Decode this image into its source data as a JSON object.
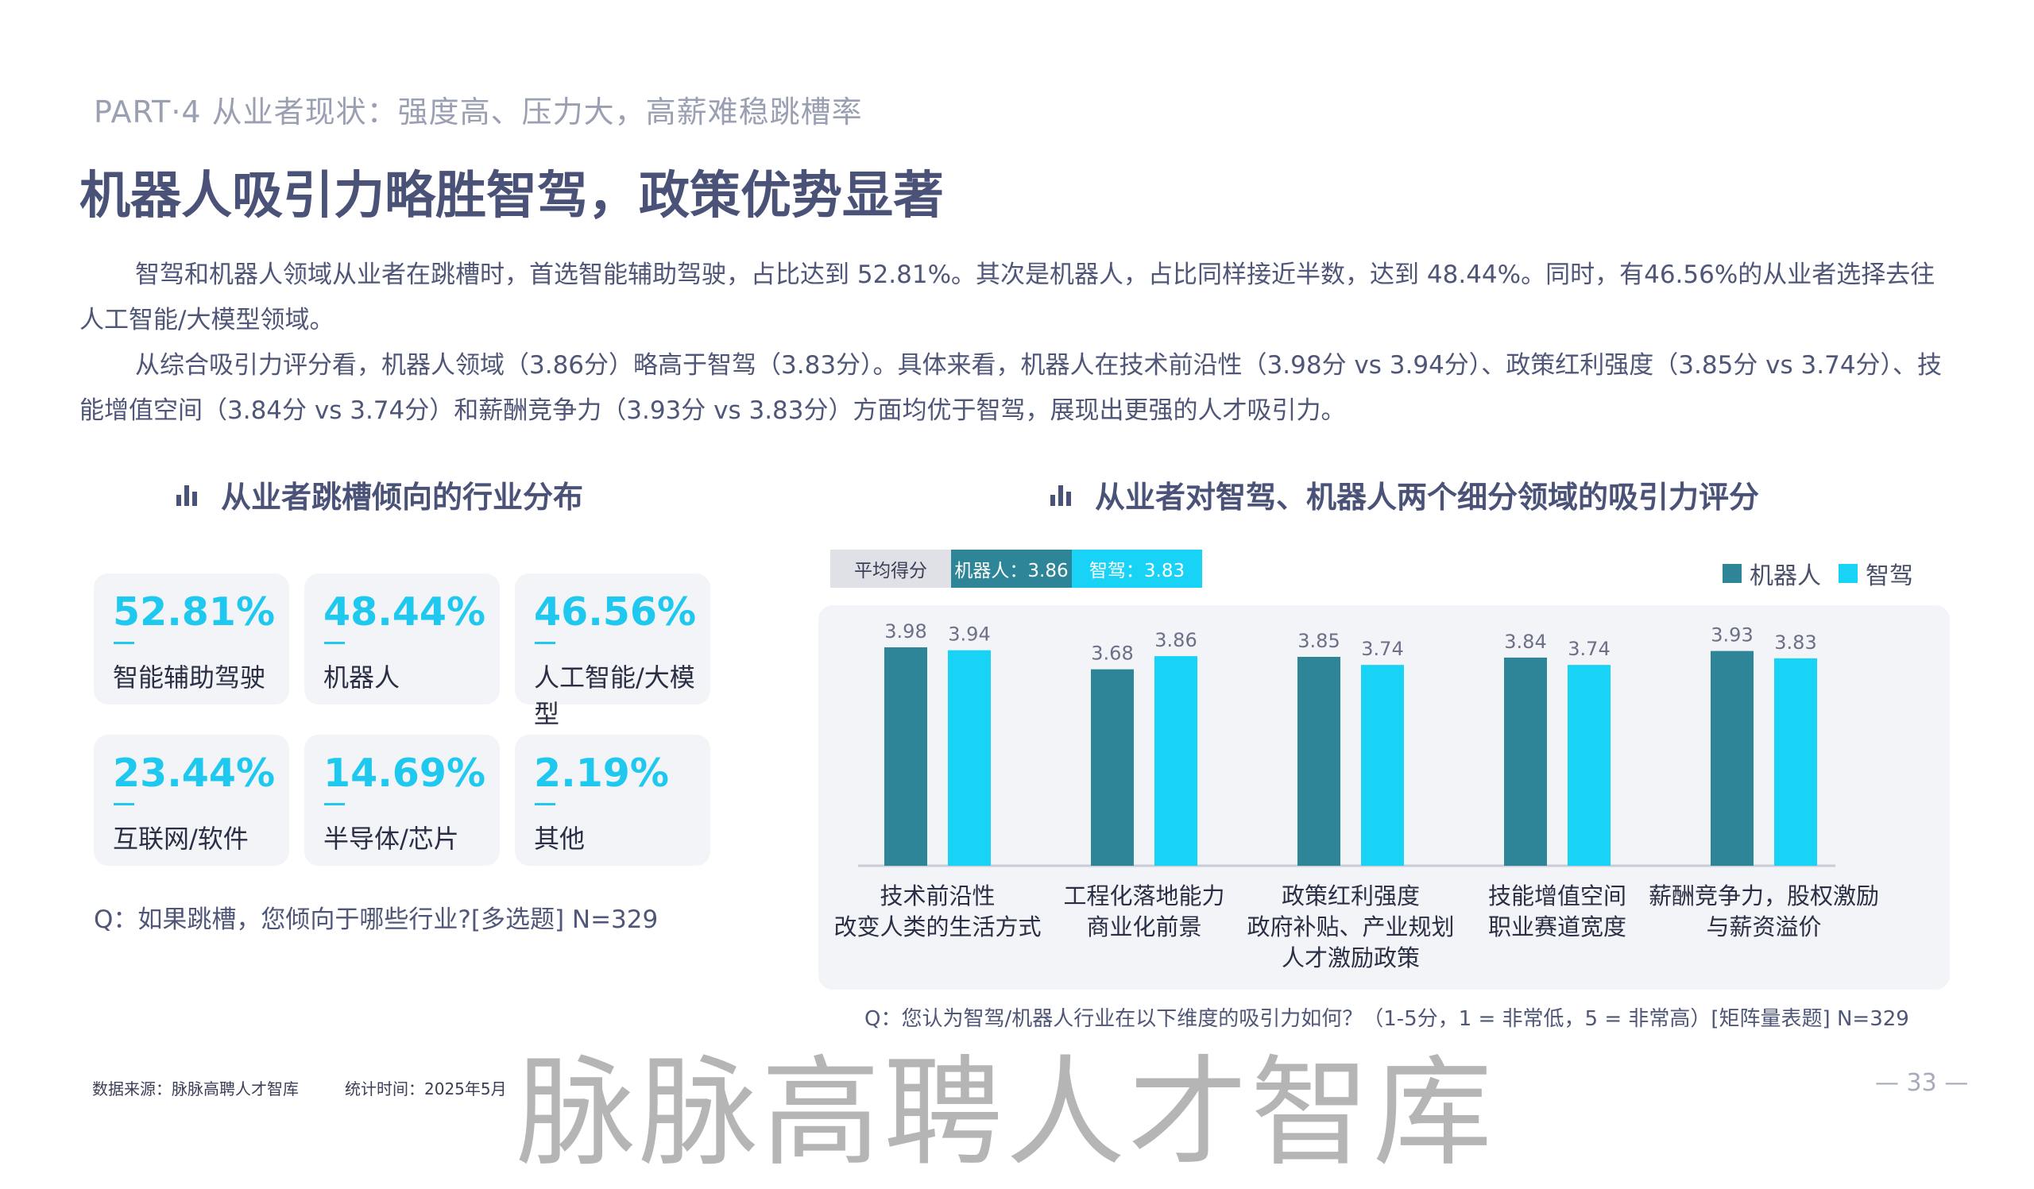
{
  "header": {
    "part": "PART·4  从业者现状：强度高、压力大，高薪难稳跳槽率",
    "title": "机器人吸引力略胜智驾，政策优势显著"
  },
  "body": {
    "p1": "智驾和机器人领域从业者在跳槽时，首选智能辅助驾驶，占比达到 52.81%。其次是机器人，占比同样接近半数，达到 48.44%。同时，有46.56%的从业者选择去往人工智能/大模型领域。",
    "p2": "从综合吸引力评分看，机器人领域（3.86分）略高于智驾（3.83分）。具体来看，机器人在技术前沿性（3.98分 vs 3.94分）、政策红利强度（3.85分 vs 3.74分）、技能增值空间（3.84分 vs 3.74分）和薪酬竞争力（3.93分 vs 3.83分）方面均优于智驾，展现出更强的人才吸引力。"
  },
  "left_section": {
    "title": "从业者跳槽倾向的行业分布",
    "stats": [
      {
        "value": "52.81%",
        "label": "智能辅助驾驶"
      },
      {
        "value": "48.44%",
        "label": "机器人"
      },
      {
        "value": "46.56%",
        "label": "人工智能/大模型"
      },
      {
        "value": "23.44%",
        "label": "互联网/软件"
      },
      {
        "value": "14.69%",
        "label": "半导体/芯片"
      },
      {
        "value": "2.19%",
        "label": "其他"
      }
    ],
    "question": "Q：如果跳槽，您倾向于哪些行业?[多选题]    N=329"
  },
  "right_section": {
    "title": "从业者对智驾、机器人两个细分领域的吸引力评分",
    "avg_label": "平均得分",
    "avg_robot": "机器人：3.86",
    "avg_zj": "智驾：3.83",
    "question": "Q：您认为智驾/机器人行业在以下维度的吸引力如何？（1-5分，1 = 非常低，5 = 非常高）[矩阵量表题]  N=329"
  },
  "chart_data": {
    "type": "bar",
    "categories": [
      [
        "技术前沿性",
        "改变人类的生活方式"
      ],
      [
        "工程化落地能力",
        "商业化前景"
      ],
      [
        "政策红利强度",
        "政府补贴、产业规划",
        "人才激励政策"
      ],
      [
        "技能增值空间",
        "职业赛道宽度"
      ],
      [
        "薪酬竞争力，股权激励",
        "与薪资溢价"
      ]
    ],
    "series": [
      {
        "name": "机器人",
        "color": "#2e8597",
        "values": [
          3.98,
          3.68,
          3.85,
          3.84,
          3.93
        ]
      },
      {
        "name": "智驾",
        "color": "#19d3f7",
        "values": [
          3.94,
          3.86,
          3.74,
          3.74,
          3.83
        ]
      }
    ],
    "legend": "top-right",
    "grid": false
  },
  "footer": {
    "source": "数据来源：脉脉高聘人才智库",
    "time": "统计时间：2025年5月",
    "page": "— 33 —",
    "watermark": "脉脉高聘人才智库"
  }
}
